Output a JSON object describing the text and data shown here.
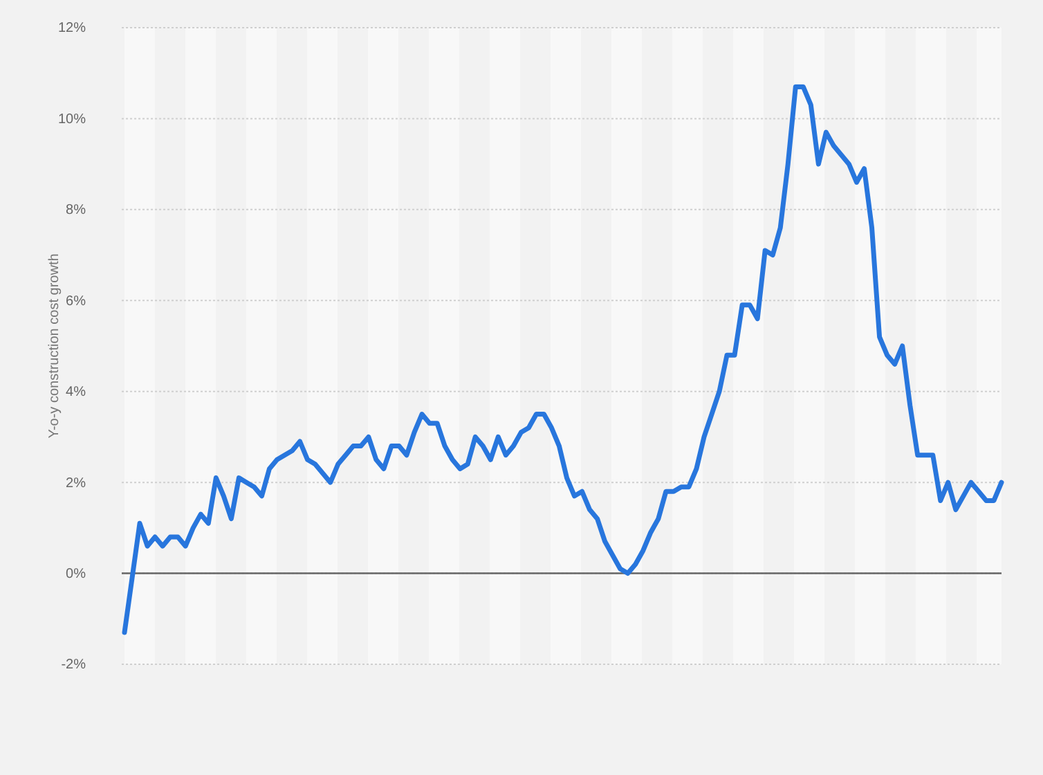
{
  "chart_data": {
    "type": "line",
    "ylabel": "Y-o-y construction cost growth",
    "categories": [
      null,
      null,
      null,
      null,
      null,
      null,
      null,
      null,
      null,
      null,
      null,
      null,
      null,
      null,
      null,
      null,
      null,
      null,
      null,
      null,
      null,
      null,
      null,
      null,
      null,
      null,
      null,
      null,
      null,
      null,
      null,
      null,
      null,
      null,
      null,
      null,
      null,
      null,
      null,
      null,
      null,
      null,
      null,
      null,
      null,
      null,
      null,
      null,
      null,
      null,
      null,
      null,
      null,
      null,
      null,
      null,
      null,
      null,
      null,
      null,
      null,
      null,
      null,
      null,
      null,
      null,
      null,
      null,
      null,
      null,
      null,
      null,
      null,
      null,
      null,
      null,
      null,
      null,
      null,
      null,
      null,
      null,
      null,
      null,
      null,
      null,
      null,
      null,
      null,
      null,
      null,
      null,
      null,
      null,
      null,
      null,
      null,
      null,
      null,
      null,
      null,
      null,
      null,
      null,
      null,
      null,
      null,
      null,
      null,
      null,
      null,
      null,
      null,
      null,
      null,
      null
    ],
    "series": [
      {
        "color": "#2876dd",
        "values": [
          -1.3,
          -0.1,
          1.1,
          0.6,
          0.8,
          0.6,
          0.8,
          0.8,
          0.6,
          1.0,
          1.3,
          1.1,
          2.1,
          1.7,
          1.2,
          2.1,
          2.0,
          1.9,
          1.7,
          2.3,
          2.5,
          2.6,
          2.7,
          2.9,
          2.5,
          2.4,
          2.2,
          2.0,
          2.4,
          2.6,
          2.8,
          2.8,
          3.0,
          2.5,
          2.3,
          2.8,
          2.8,
          2.6,
          3.1,
          3.5,
          3.3,
          3.3,
          2.8,
          2.5,
          2.3,
          2.4,
          3.0,
          2.8,
          2.5,
          3.0,
          2.6,
          2.8,
          3.1,
          3.2,
          3.5,
          3.5,
          3.2,
          2.8,
          2.1,
          1.7,
          1.8,
          1.4,
          1.2,
          0.7,
          0.4,
          0.1,
          0.0,
          0.2,
          0.5,
          0.9,
          1.2,
          1.8,
          1.8,
          1.9,
          1.9,
          2.3,
          3.0,
          3.5,
          4.0,
          4.8,
          4.8,
          5.9,
          5.9,
          5.6,
          7.1,
          7.0,
          7.6,
          9.0,
          10.7,
          10.7,
          10.3,
          9.0,
          9.7,
          9.4,
          9.2,
          9.0,
          8.6,
          8.9,
          7.6,
          5.2,
          4.8,
          4.6,
          5.0,
          3.7,
          2.6,
          2.6,
          2.6,
          1.6,
          2.0,
          1.4,
          1.7,
          2.0,
          1.8,
          1.6,
          1.6,
          2.0
        ]
      }
    ],
    "ylim": [
      -2,
      12
    ],
    "yticks": [
      {
        "value": -2,
        "label": "-2%"
      },
      {
        "value": 0,
        "label": "0%"
      },
      {
        "value": 2,
        "label": "2%"
      },
      {
        "value": 4,
        "label": "4%"
      },
      {
        "value": 6,
        "label": "6%"
      },
      {
        "value": 8,
        "label": "8%"
      },
      {
        "value": 10,
        "label": "10%"
      },
      {
        "value": 12,
        "label": "12%"
      }
    ],
    "ref_lines": [
      {
        "axis": "y",
        "value": 0,
        "color": "#666666",
        "line_style": "solid"
      }
    ],
    "grid": "y",
    "marker": "none",
    "line_style": "solid",
    "tick_labels": "y"
  }
}
